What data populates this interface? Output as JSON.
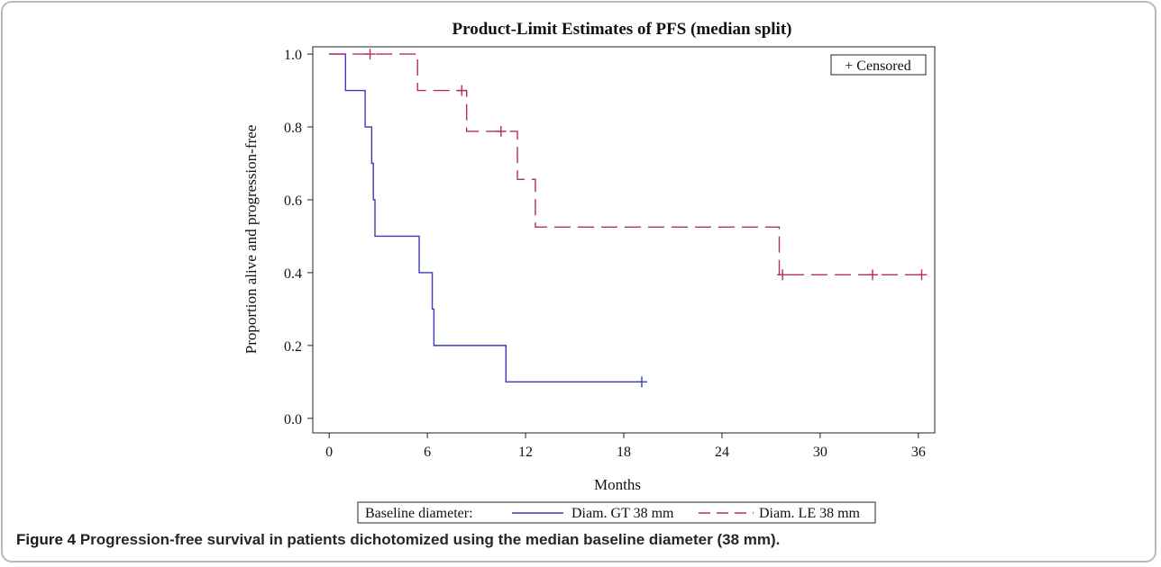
{
  "chart_data": {
    "type": "line",
    "subtype": "step",
    "title": "Product-Limit Estimates of PFS (median split)",
    "xlabel": "Months",
    "ylabel": "Proportion alive and progression-free",
    "xlim": [
      -1,
      37
    ],
    "ylim": [
      -0.04,
      1.02
    ],
    "xticks": [
      0,
      6,
      12,
      18,
      24,
      30,
      36
    ],
    "xtick_labels": [
      "0",
      "6",
      "12",
      "18",
      "24",
      "30",
      "36"
    ],
    "yticks": [
      0,
      0.2,
      0.4,
      0.6,
      0.8,
      1.0
    ],
    "ytick_labels": [
      "0.0",
      "0.2",
      "0.4",
      "0.6",
      "0.8",
      "1.0"
    ],
    "grid": false,
    "censor_legend": "+ Censored",
    "legend_title": "Baseline diameter:",
    "legend_position": "bottom",
    "series": [
      {
        "name": "Diam. GT 38 mm",
        "color": "#3c3cb4",
        "dash": "solid",
        "steps": [
          [
            0,
            1.0
          ],
          [
            1.0,
            0.9
          ],
          [
            2.2,
            0.8
          ],
          [
            2.6,
            0.7
          ],
          [
            2.7,
            0.6
          ],
          [
            2.8,
            0.5
          ],
          [
            5.5,
            0.4
          ],
          [
            6.3,
            0.3
          ],
          [
            6.4,
            0.2
          ],
          [
            10.8,
            0.1
          ],
          [
            19.1,
            0.1
          ]
        ],
        "censored": [
          [
            19.1,
            0.1
          ]
        ]
      },
      {
        "name": "Diam. LE 38 mm",
        "color": "#b4324b",
        "dash": "dashed",
        "steps": [
          [
            0,
            1.0
          ],
          [
            5.4,
            0.9
          ],
          [
            8.4,
            0.788
          ],
          [
            11.5,
            0.656
          ],
          [
            12.6,
            0.525
          ],
          [
            27.5,
            0.394
          ],
          [
            36.3,
            0.394
          ]
        ],
        "censored": [
          [
            2.5,
            1.0
          ],
          [
            8.1,
            0.9
          ],
          [
            10.5,
            0.788
          ],
          [
            27.7,
            0.394
          ],
          [
            33.2,
            0.394
          ],
          [
            36.2,
            0.394
          ]
        ]
      }
    ]
  },
  "caption": {
    "label": "Figure 4",
    "text": " Progression-free survival in patients dichotomized using the median baseline diameter (38 mm)."
  }
}
